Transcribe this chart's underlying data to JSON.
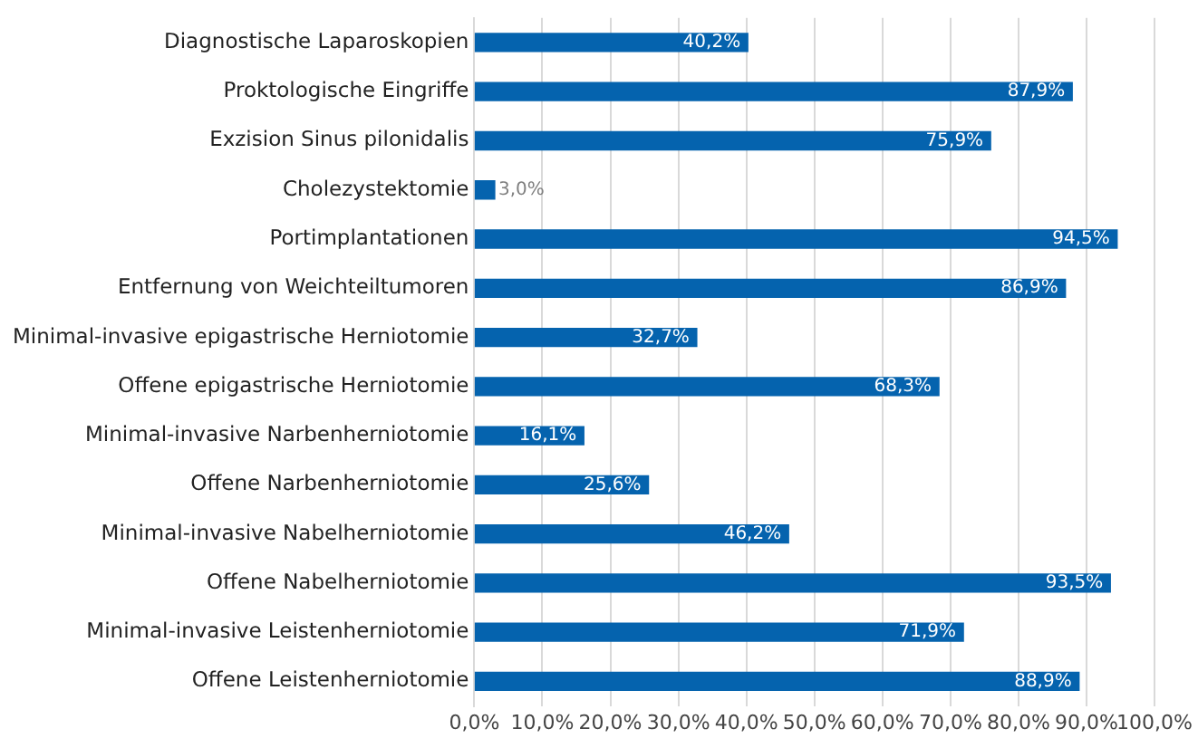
{
  "chart_data": {
    "type": "bar",
    "orientation": "horizontal",
    "categories": [
      "Diagnostische Laparoskopien",
      "Proktologische Eingriffe",
      "Exzision Sinus pilonidalis",
      "Cholezystektomie",
      "Portimplantationen",
      "Entfernung von Weichteiltumoren",
      "Minimal-invasive epigastrische Herniotomie",
      "Offene epigastrische Herniotomie",
      "Minimal-invasive Narbenherniotomie",
      "Offene Narbenherniotomie",
      "Minimal-invasive Nabelherniotomie",
      "Offene Nabelherniotomie",
      "Minimal-invasive Leistenherniotomie",
      "Offene Leistenherniotomie"
    ],
    "values": [
      40.2,
      87.9,
      75.9,
      3.0,
      94.5,
      86.9,
      32.7,
      68.3,
      16.1,
      25.6,
      46.2,
      93.5,
      71.9,
      88.9
    ],
    "value_labels": [
      "40,2%",
      "87,9%",
      "75,9%",
      "3,0%",
      "94,5%",
      "86,9%",
      "32,7%",
      "68,3%",
      "16,1%",
      "25,6%",
      "46,2%",
      "93,5%",
      "71,9%",
      "88,9%"
    ],
    "color": "#0563ae",
    "xlim": [
      0,
      100
    ],
    "xticks": [
      {
        "value": 0,
        "label": "0,0%"
      },
      {
        "value": 10,
        "label": "10,0%"
      },
      {
        "value": 20,
        "label": "20,0%"
      },
      {
        "value": 30,
        "label": "30,0%"
      },
      {
        "value": 40,
        "label": "40,0%"
      },
      {
        "value": 50,
        "label": "50,0%"
      },
      {
        "value": 60,
        "label": "60,0%"
      },
      {
        "value": 70,
        "label": "70,0%"
      },
      {
        "value": 80,
        "label": "80,0%"
      },
      {
        "value": 90,
        "label": "90,0%"
      },
      {
        "value": 100,
        "label": "100,0%"
      }
    ],
    "grid": "x",
    "legend": false
  }
}
